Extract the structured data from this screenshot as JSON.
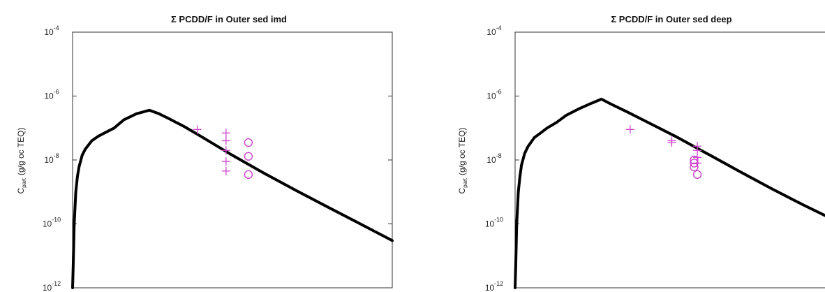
{
  "chart_data": [
    {
      "type": "line",
      "title": "Σ PCDD/F in Outer sed imd",
      "ylabel": "(g/g oc TEQ)",
      "ylabel_symbol": "C",
      "ylabel_subscript": "part",
      "yscale": "log",
      "ylim": [
        1e-12,
        0.0001
      ],
      "xlim": [
        0,
        100
      ],
      "y_ticks": [
        {
          "base": "10",
          "exp": "-4",
          "value": 0.0001
        },
        {
          "base": "10",
          "exp": "-6",
          "value": 1e-06
        },
        {
          "base": "10",
          "exp": "-8",
          "value": 1e-08
        },
        {
          "base": "10",
          "exp": "-10",
          "value": 1e-10
        },
        {
          "base": "10",
          "exp": "-12",
          "value": 1e-12
        }
      ],
      "grid": false,
      "series": [
        {
          "kind": "line",
          "color": "#000000",
          "x": [
            0,
            0.2,
            0.5,
            1,
            1.5,
            2,
            3,
            4,
            6,
            8,
            10,
            13,
            16,
            20,
            24,
            27,
            30,
            35,
            40,
            50,
            60,
            70,
            80,
            90,
            100
          ],
          "y": [
            1e-12,
            5e-12,
            1e-10,
            1e-09,
            3e-09,
            6e-09,
            1.4e-08,
            2.2e-08,
            4e-08,
            5.5e-08,
            7e-08,
            1e-07,
            1.8e-07,
            2.8e-07,
            3.6e-07,
            2.8e-07,
            2e-07,
            1.1e-07,
            5.6e-08,
            1.4e-08,
            3.8e-09,
            1.1e-09,
            3.3e-10,
            1e-10,
            3e-11
          ]
        },
        {
          "kind": "scatter",
          "marker": "plus",
          "color": "#cc44cc",
          "x": [
            39,
            48,
            48,
            48,
            48,
            48
          ],
          "y": [
            9e-08,
            7e-08,
            4e-08,
            2e-08,
            9e-09,
            4.5e-09
          ]
        },
        {
          "kind": "scatter",
          "marker": "circle",
          "color": "#cc44cc",
          "x": [
            55,
            55,
            55
          ],
          "y": [
            3.5e-08,
            1.3e-08,
            3.5e-09
          ]
        }
      ]
    },
    {
      "type": "line",
      "title": "Σ PCDD/F in Outer sed deep",
      "ylabel": "(g/g oc TEQ)",
      "ylabel_symbol": "C",
      "ylabel_subscript": "part",
      "yscale": "log",
      "ylim": [
        1e-12,
        0.0001
      ],
      "xlim": [
        0,
        100
      ],
      "y_ticks": [
        {
          "base": "10",
          "exp": "-4",
          "value": 0.0001
        },
        {
          "base": "10",
          "exp": "-6",
          "value": 1e-06
        },
        {
          "base": "10",
          "exp": "-8",
          "value": 1e-08
        },
        {
          "base": "10",
          "exp": "-10",
          "value": 1e-10
        },
        {
          "base": "10",
          "exp": "-12",
          "value": 1e-12
        }
      ],
      "grid": false,
      "series": [
        {
          "kind": "line",
          "color": "#000000",
          "x": [
            0,
            0.2,
            0.5,
            1,
            1.5,
            2,
            3,
            4,
            6,
            8,
            10,
            13,
            16,
            20,
            24,
            27,
            30,
            35,
            40,
            50,
            60,
            70,
            80,
            90,
            100
          ],
          "y": [
            1e-12,
            5e-12,
            1e-10,
            1e-09,
            3e-09,
            7e-09,
            1.6e-08,
            2.6e-08,
            5e-08,
            7e-08,
            1e-07,
            1.5e-07,
            2.5e-07,
            4e-07,
            6e-07,
            8e-07,
            5.6e-07,
            3.2e-07,
            1.8e-07,
            5.6e-08,
            1.6e-08,
            4.5e-09,
            1.3e-09,
            4e-10,
            1.3e-10
          ]
        },
        {
          "kind": "scatter",
          "marker": "plus",
          "color": "#cc44cc",
          "x": [
            36,
            49,
            49,
            57,
            57,
            57,
            57
          ],
          "y": [
            9e-08,
            4e-08,
            3.5e-08,
            2.7e-08,
            2e-08,
            1.2e-08,
            8e-09
          ]
        },
        {
          "kind": "scatter",
          "marker": "circle",
          "color": "#cc44cc",
          "x": [
            56,
            56,
            56,
            57
          ],
          "y": [
            1e-08,
            8e-09,
            6e-09,
            3.5e-09
          ]
        }
      ]
    }
  ]
}
